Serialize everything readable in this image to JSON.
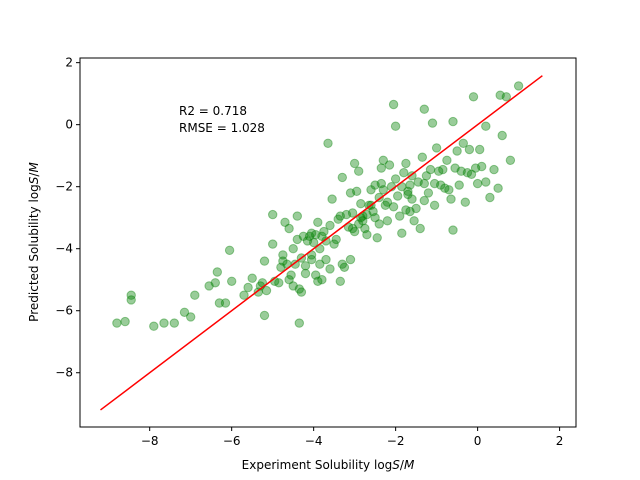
{
  "chart_data": {
    "type": "scatter",
    "xlabel": "Experiment Solubility",
    "ylabel": "Predicted Solubility",
    "unit_label": {
      "pre": "log",
      "var": "S",
      "slash": "/",
      "unit": "M"
    },
    "xlim": [
      -9.7,
      2.4
    ],
    "ylim": [
      -9.75,
      2.15
    ],
    "xticks": [
      -8,
      -6,
      -4,
      -2,
      0,
      2
    ],
    "yticks": [
      -8,
      -6,
      -4,
      -2,
      0,
      2
    ],
    "tick_labels_x": [
      "−8",
      "−6",
      "−4",
      "−2",
      "0",
      "2"
    ],
    "tick_labels_y": [
      "−8",
      "−6",
      "−4",
      "−2",
      "0",
      "2"
    ],
    "grid": false,
    "point_color": "#008000",
    "line_color": "#ff0000",
    "annotations": [
      "R2 = 0.718",
      "RMSE = 1.028"
    ],
    "fit_line": [
      [
        -9.2,
        -9.2
      ],
      [
        1.58,
        1.58
      ]
    ],
    "points": [
      [
        -8.8,
        -6.4
      ],
      [
        -8.6,
        -6.35
      ],
      [
        -8.45,
        -5.5
      ],
      [
        -8.45,
        -5.65
      ],
      [
        -7.9,
        -6.5
      ],
      [
        -7.65,
        -6.4
      ],
      [
        -7.4,
        -6.4
      ],
      [
        -7.15,
        -6.05
      ],
      [
        -7.0,
        -6.2
      ],
      [
        -6.9,
        -5.5
      ],
      [
        -6.55,
        -5.2
      ],
      [
        -6.4,
        -5.1
      ],
      [
        -6.35,
        -4.75
      ],
      [
        -6.3,
        -5.75
      ],
      [
        -6.15,
        -5.75
      ],
      [
        -6.05,
        -4.05
      ],
      [
        -6.0,
        -5.05
      ],
      [
        -5.7,
        -5.5
      ],
      [
        -5.6,
        -5.25
      ],
      [
        -5.5,
        -4.95
      ],
      [
        -5.35,
        -5.4
      ],
      [
        -5.3,
        -5.2
      ],
      [
        -5.25,
        -5.1
      ],
      [
        -5.2,
        -6.15
      ],
      [
        -5.2,
        -4.4
      ],
      [
        -5.15,
        -5.35
      ],
      [
        -5.0,
        -3.85
      ],
      [
        -5.0,
        -2.9
      ],
      [
        -4.95,
        -5.05
      ],
      [
        -4.85,
        -5.1
      ],
      [
        -4.8,
        -4.6
      ],
      [
        -4.75,
        -4.4
      ],
      [
        -4.75,
        -4.2
      ],
      [
        -4.7,
        -3.15
      ],
      [
        -4.65,
        -4.5
      ],
      [
        -4.6,
        -5.0
      ],
      [
        -4.55,
        -4.85
      ],
      [
        -4.5,
        -5.2
      ],
      [
        -4.5,
        -4.0
      ],
      [
        -4.45,
        -4.5
      ],
      [
        -4.4,
        -2.95
      ],
      [
        -4.4,
        -3.7
      ],
      [
        -4.35,
        -5.3
      ],
      [
        -4.35,
        -6.4
      ],
      [
        -4.3,
        -4.3
      ],
      [
        -4.3,
        -5.4
      ],
      [
        -4.25,
        -3.6
      ],
      [
        -4.2,
        -4.55
      ],
      [
        -4.2,
        -4.8
      ],
      [
        -4.15,
        -3.75
      ],
      [
        -4.1,
        -3.6
      ],
      [
        -4.05,
        -4.2
      ],
      [
        -4.05,
        -3.5
      ],
      [
        -4.0,
        -3.8
      ],
      [
        -3.95,
        -3.55
      ],
      [
        -3.95,
        -4.85
      ],
      [
        -3.9,
        -5.05
      ],
      [
        -3.9,
        -3.15
      ],
      [
        -3.85,
        -4.0
      ],
      [
        -3.85,
        -4.5
      ],
      [
        -3.8,
        -3.6
      ],
      [
        -3.8,
        -5.0
      ],
      [
        -3.75,
        -3.45
      ],
      [
        -3.7,
        -3.75
      ],
      [
        -3.7,
        -4.35
      ],
      [
        -3.65,
        -0.6
      ],
      [
        -3.6,
        -4.65
      ],
      [
        -3.55,
        -2.4
      ],
      [
        -3.5,
        -3.85
      ],
      [
        -3.45,
        -3.7
      ],
      [
        -3.4,
        -3.05
      ],
      [
        -3.35,
        -5.05
      ],
      [
        -3.3,
        -4.5
      ],
      [
        -3.3,
        -1.7
      ],
      [
        -3.25,
        -4.6
      ],
      [
        -3.2,
        -2.9
      ],
      [
        -3.15,
        -3.3
      ],
      [
        -3.1,
        -2.2
      ],
      [
        -3.1,
        -4.35
      ],
      [
        -3.05,
        -2.85
      ],
      [
        -3.0,
        -1.25
      ],
      [
        -3.0,
        -3.45
      ],
      [
        -2.95,
        -2.15
      ],
      [
        -2.9,
        -3.2
      ],
      [
        -2.9,
        -1.5
      ],
      [
        -2.85,
        -3.0
      ],
      [
        -2.8,
        -3.1
      ],
      [
        -2.75,
        -3.35
      ],
      [
        -2.7,
        -3.55
      ],
      [
        -2.65,
        -2.6
      ],
      [
        -2.6,
        -2.6
      ],
      [
        -2.55,
        -2.8
      ],
      [
        -2.5,
        -1.95
      ],
      [
        -2.5,
        -3.0
      ],
      [
        -2.45,
        -3.65
      ],
      [
        -2.4,
        -2.35
      ],
      [
        -2.4,
        -3.2
      ],
      [
        -2.35,
        -1.4
      ],
      [
        -2.3,
        -2.1
      ],
      [
        -2.3,
        -1.15
      ],
      [
        -2.25,
        -2.6
      ],
      [
        -2.2,
        -3.1
      ],
      [
        -2.15,
        -1.3
      ],
      [
        -2.1,
        -2.0
      ],
      [
        -2.05,
        -2.65
      ],
      [
        -2.0,
        -1.75
      ],
      [
        -2.0,
        -0.05
      ],
      [
        -1.95,
        -2.3
      ],
      [
        -1.9,
        -2.95
      ],
      [
        -1.85,
        -3.5
      ],
      [
        -1.8,
        -1.55
      ],
      [
        -1.75,
        -2.75
      ],
      [
        -1.7,
        -2.15
      ],
      [
        -1.65,
        -2.8
      ],
      [
        -1.6,
        -1.65
      ],
      [
        -1.6,
        -2.4
      ],
      [
        -1.55,
        -3.1
      ],
      [
        -1.5,
        -2.7
      ],
      [
        -1.45,
        -1.85
      ],
      [
        -1.4,
        -3.35
      ],
      [
        -1.35,
        -1.05
      ],
      [
        -1.3,
        -2.45
      ],
      [
        -1.3,
        -1.9
      ],
      [
        -1.25,
        -1.65
      ],
      [
        -1.2,
        -2.2
      ],
      [
        -1.15,
        -1.45
      ],
      [
        -1.1,
        0.05
      ],
      [
        -1.05,
        -2.6
      ],
      [
        -1.0,
        -0.75
      ],
      [
        -0.95,
        -1.5
      ],
      [
        -0.9,
        -1.95
      ],
      [
        -0.85,
        -1.45
      ],
      [
        -0.8,
        -2.05
      ],
      [
        -0.75,
        -1.15
      ],
      [
        -0.7,
        -2.1
      ],
      [
        -0.65,
        -2.4
      ],
      [
        -0.6,
        -3.4
      ],
      [
        -0.55,
        -1.4
      ],
      [
        -0.5,
        -0.85
      ],
      [
        -0.45,
        -1.95
      ],
      [
        -0.4,
        -1.5
      ],
      [
        -0.35,
        -0.6
      ],
      [
        -0.3,
        -2.5
      ],
      [
        -0.25,
        -1.55
      ],
      [
        -0.2,
        -0.8
      ],
      [
        -0.15,
        -1.6
      ],
      [
        -0.1,
        0.9
      ],
      [
        -0.05,
        -1.4
      ],
      [
        0.0,
        -1.9
      ],
      [
        0.05,
        -0.8
      ],
      [
        0.1,
        -1.35
      ],
      [
        0.2,
        -0.05
      ],
      [
        0.3,
        -2.35
      ],
      [
        0.4,
        -1.45
      ],
      [
        0.5,
        -2.05
      ],
      [
        0.55,
        0.95
      ],
      [
        0.6,
        -0.35
      ],
      [
        0.7,
        0.9
      ],
      [
        0.8,
        -1.15
      ],
      [
        1.0,
        1.25
      ],
      [
        -2.6,
        -2.1
      ],
      [
        -2.2,
        -2.5
      ],
      [
        -1.85,
        -2.0
      ],
      [
        -2.7,
        -2.9
      ],
      [
        -3.6,
        -3.25
      ],
      [
        -2.35,
        -1.9
      ],
      [
        -1.75,
        -1.25
      ],
      [
        -0.6,
        0.1
      ],
      [
        -2.05,
        0.65
      ],
      [
        -1.3,
        0.5
      ],
      [
        -3.05,
        -3.35
      ],
      [
        -2.85,
        -2.55
      ],
      [
        -1.65,
        -1.95
      ],
      [
        -4.05,
        -4.35
      ],
      [
        -4.6,
        -3.35
      ],
      [
        -3.35,
        -2.95
      ],
      [
        -2.8,
        -2.95
      ],
      [
        -1.05,
        -1.9
      ],
      [
        0.2,
        -1.85
      ],
      [
        -1.7,
        -2.25
      ]
    ]
  }
}
